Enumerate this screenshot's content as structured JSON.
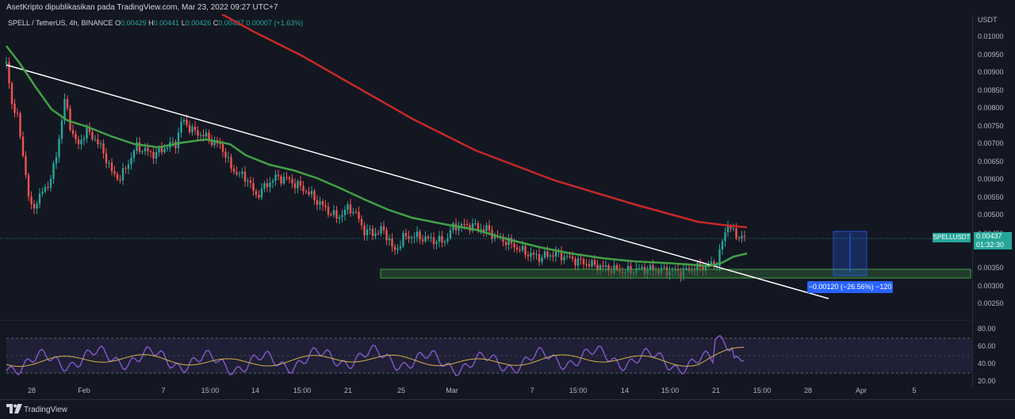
{
  "header": {
    "attribution": "AsetKripto dipublikasikan pada TradingView.com, Mar 23, 2022 09:27 UTC+7"
  },
  "legend": {
    "symbol": "SPELL / TetherUS, 4h, BINANCE",
    "o_label": "O",
    "o_value": "0.00429",
    "h_label": "H",
    "h_value": "0.00441",
    "l_label": "L",
    "l_value": "0.00426",
    "c_label": "C",
    "c_value": "0.00437",
    "change": "0.00007 (+1.63%)"
  },
  "price_axis": {
    "currency": "USDT",
    "ticks": [
      "0.01050",
      "0.01000",
      "0.00950",
      "0.00900",
      "0.00850",
      "0.00800",
      "0.00750",
      "0.00700",
      "0.00650",
      "0.00600",
      "0.00550",
      "0.00500",
      "0.00450",
      "0.00400",
      "0.00350",
      "0.00300",
      "0.00250"
    ]
  },
  "price_tag": {
    "price": "0.00437",
    "countdown": "01:32:30"
  },
  "symbol_tag": "SPELLUSDT",
  "measure": {
    "label": "−0.00120 (−26.56%) −120"
  },
  "rsi_axis": {
    "ticks": [
      "80.00",
      "60.00",
      "40.00",
      "20.00"
    ]
  },
  "time_axis": [
    "28",
    "Feb",
    "7",
    "15:00",
    "14",
    "15:00",
    "21",
    "25",
    "Mar",
    "7",
    "15:00",
    "14",
    "15:00",
    "21",
    "15:00",
    "28",
    "Apr",
    "5"
  ],
  "footer": {
    "brand": "TradingView"
  },
  "colors": {
    "background": "#131722",
    "up": "#26a69a",
    "down": "#ef5350",
    "ma_slow": "#c62828",
    "ma_fast": "#43a047",
    "trendline": "#ffffff",
    "rsi": "#7e57c2",
    "rsi_ma": "#d4b04a",
    "support_zone": "#2e5a35",
    "measure": "#2962ff"
  }
}
